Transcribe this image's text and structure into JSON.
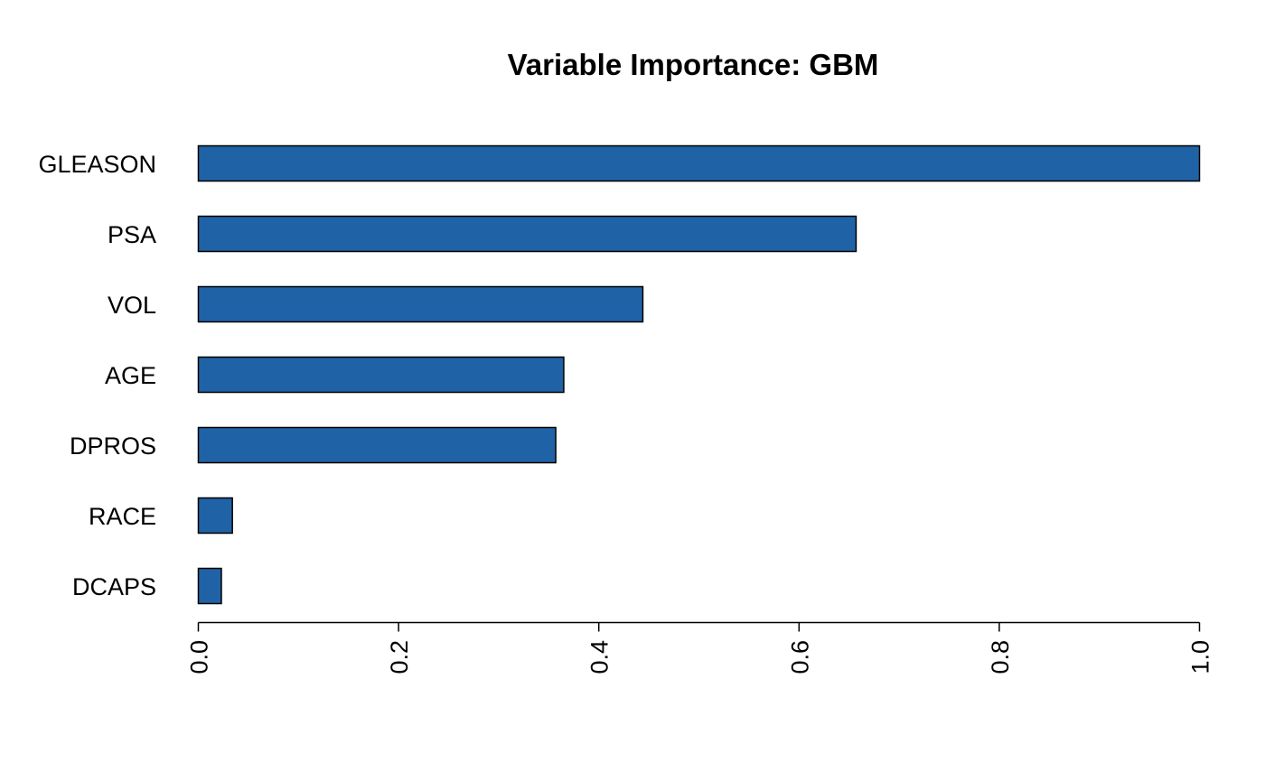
{
  "chart_data": {
    "type": "bar",
    "orientation": "horizontal",
    "title": "Variable Importance: GBM",
    "xlabel": "",
    "ylabel": "",
    "categories": [
      "GLEASON",
      "PSA",
      "VOL",
      "AGE",
      "DPROS",
      "RACE",
      "DCAPS"
    ],
    "values": [
      1.0,
      0.657,
      0.444,
      0.365,
      0.357,
      0.034,
      0.023
    ],
    "xlim": [
      0,
      1
    ],
    "xticks": [
      0.0,
      0.2,
      0.4,
      0.6,
      0.8,
      1.0
    ],
    "xtick_labels": [
      "0.0",
      "0.2",
      "0.4",
      "0.6",
      "0.8",
      "1.0"
    ],
    "tick_label_orientation": "vertical",
    "grid": false,
    "legend": "none",
    "bar_color": "#1F63A6",
    "bar_edge_color": "#000000"
  }
}
